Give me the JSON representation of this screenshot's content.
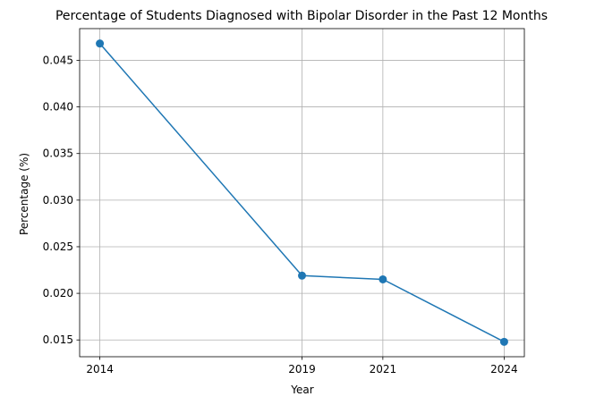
{
  "chart_data": {
    "type": "line",
    "title": "Percentage of Students Diagnosed with Bipolar Disorder in the Past 12 Months",
    "xlabel": "Year",
    "ylabel": "Percentage (%)",
    "x": [
      2014,
      2019,
      2021,
      2024
    ],
    "x_tick_labels": [
      "2014",
      "2019",
      "2021",
      "2024"
    ],
    "series": [
      {
        "values": [
          0.0468,
          0.0219,
          0.0215,
          0.0148
        ],
        "color": "#1f77b4"
      }
    ],
    "xlim": [
      2013.5,
      2024.5
    ],
    "ylim": [
      0.0132,
      0.0484
    ],
    "y_ticks": [
      0.015,
      0.02,
      0.025,
      0.03,
      0.035,
      0.04,
      0.045
    ],
    "y_tick_labels": [
      "0.015",
      "0.020",
      "0.025",
      "0.030",
      "0.035",
      "0.040",
      "0.045"
    ],
    "grid": true,
    "marker": "circle"
  }
}
